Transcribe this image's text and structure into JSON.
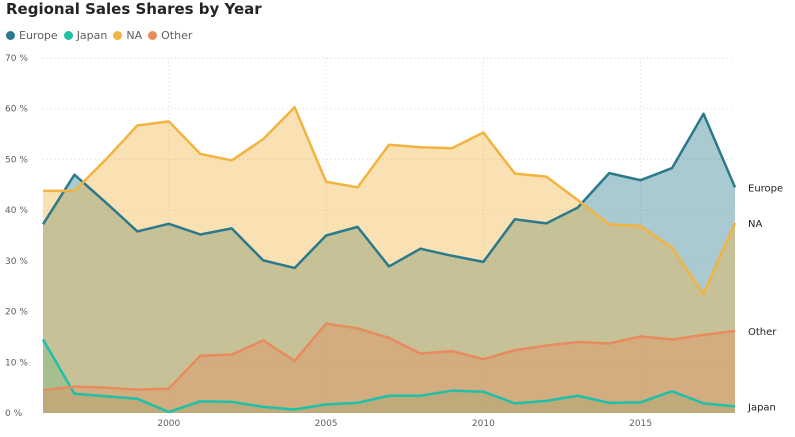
{
  "chart_data": {
    "type": "area",
    "title": "Regional Sales Shares by Year",
    "xlabel": "",
    "ylabel": "",
    "x": [
      1996,
      1997,
      1998,
      1999,
      2000,
      2001,
      2002,
      2003,
      2004,
      2005,
      2006,
      2007,
      2008,
      2009,
      2010,
      2011,
      2012,
      2013,
      2014,
      2015,
      2016,
      2017,
      2018
    ],
    "xlim": [
      1996,
      2018
    ],
    "ylim": [
      0,
      70
    ],
    "x_ticks": [
      2000,
      2005,
      2010,
      2015
    ],
    "y_ticks": [
      0,
      10,
      20,
      30,
      40,
      50,
      60,
      70
    ],
    "y_tick_suffix": " %",
    "legend_position": "top-left",
    "grid": true,
    "series": [
      {
        "name": "Europe",
        "color": "#2b7a8b",
        "end_label": "Europe",
        "values": [
          37.2,
          47.0,
          41.5,
          35.8,
          37.3,
          35.2,
          36.4,
          30.1,
          28.6,
          35.0,
          36.7,
          28.9,
          32.4,
          31.0,
          29.8,
          38.2,
          37.4,
          40.5,
          47.3,
          45.9,
          48.3,
          59.0,
          44.5
        ]
      },
      {
        "name": "Japan",
        "color": "#1fc0aa",
        "end_label": "Japan",
        "values": [
          14.5,
          3.8,
          3.3,
          2.8,
          0.2,
          2.3,
          2.2,
          1.2,
          0.7,
          1.7,
          2.0,
          3.4,
          3.4,
          4.4,
          4.2,
          1.9,
          2.4,
          3.4,
          2.0,
          2.1,
          4.3,
          1.9,
          1.3
        ]
      },
      {
        "name": "NA",
        "color": "#f2b441",
        "end_label": "NA",
        "values": [
          43.8,
          43.8,
          50.0,
          56.7,
          57.5,
          51.1,
          49.8,
          54.0,
          60.3,
          45.6,
          44.5,
          52.9,
          52.4,
          52.2,
          55.3,
          47.2,
          46.6,
          42.0,
          37.2,
          36.9,
          32.6,
          23.5,
          37.5
        ]
      },
      {
        "name": "Other",
        "color": "#e78c5c",
        "end_label": "Other",
        "values": [
          4.5,
          5.2,
          5.0,
          4.6,
          4.8,
          11.3,
          11.5,
          14.3,
          10.3,
          17.6,
          16.7,
          14.8,
          11.7,
          12.2,
          10.6,
          12.4,
          13.3,
          14.0,
          13.7,
          15.1,
          14.5,
          15.4,
          16.2
        ]
      }
    ]
  }
}
